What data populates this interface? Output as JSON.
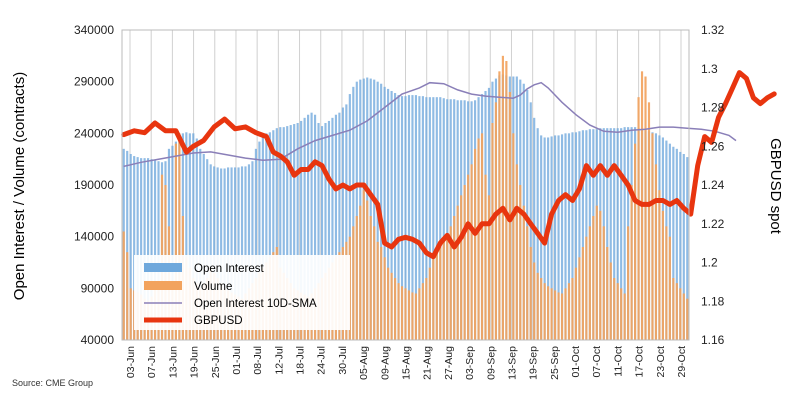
{
  "chart_data": {
    "type": "bar+line",
    "left_axis": {
      "label": "Open Interest / Volume (contracts)",
      "range": [
        40000,
        340000
      ],
      "ticks": [
        "40000",
        "90000",
        "140000",
        "190000",
        "240000",
        "290000",
        "340000"
      ]
    },
    "right_axis": {
      "label": "GBPUSD spot",
      "range": [
        1.16,
        1.32
      ],
      "ticks": [
        "1.16",
        "1.18",
        "1.2",
        "1.22",
        "1.24",
        "1.26",
        "1.28",
        "1.3",
        "1.32"
      ]
    },
    "x_tick_labels": [
      "03-Jun",
      "07-Jun",
      "13-Jun",
      "19-Jun",
      "25-Jun",
      "01-Jul",
      "08-Jul",
      "12-Jul",
      "18-Jul",
      "24-Jul",
      "30-Jul",
      "05-Aug",
      "09-Aug",
      "15-Aug",
      "21-Aug",
      "27-Aug",
      "03-Sep",
      "09-Sep",
      "13-Sep",
      "19-Sep",
      "25-Sep",
      "01-Oct",
      "07-Oct",
      "11-Oct",
      "17-Oct",
      "23-Oct",
      "29-Oct"
    ],
    "grid": "vertical lines at each x tick label",
    "legend": {
      "placement": "bottom-left",
      "entries": [
        {
          "name": "Open Interest",
          "color": "#6fa8dc"
        },
        {
          "name": "Volume",
          "color": "#f2a35e"
        },
        {
          "name": "Open Interest 10D-SMA",
          "color": "#8a7fb8"
        },
        {
          "name": "GBPUSD",
          "color": "#e8350f"
        }
      ]
    },
    "series": [
      {
        "name": "Open Interest",
        "type": "bar",
        "axis": "left",
        "values": [
          225000,
          223000,
          220000,
          218000,
          217000,
          216000,
          216000,
          216000,
          215000,
          214000,
          213000,
          212000,
          213000,
          225000,
          228000,
          232000,
          236000,
          240000,
          241000,
          240000,
          240000,
          235000,
          225000,
          220000,
          215000,
          210000,
          208000,
          207000,
          206000,
          206000,
          207000,
          207000,
          207000,
          207000,
          208000,
          208000,
          210000,
          213000,
          225000,
          232000,
          238000,
          240000,
          241000,
          243000,
          245000,
          246000,
          246000,
          247000,
          248000,
          249000,
          250000,
          252000,
          255000,
          258000,
          260000,
          258000,
          250000,
          247000,
          250000,
          252000,
          255000,
          258000,
          260000,
          265000,
          268000,
          278000,
          285000,
          290000,
          292000,
          293000,
          294000,
          293000,
          292000,
          290000,
          288000,
          285000,
          283000,
          281000,
          279000,
          277000,
          276000,
          276000,
          277000,
          277000,
          277000,
          276000,
          276000,
          275000,
          275000,
          275000,
          275000,
          275000,
          274000,
          273000,
          273000,
          273000,
          272000,
          272000,
          272000,
          271000,
          271000,
          272000,
          275000,
          278000,
          281000,
          284000,
          290000,
          293000,
          296000,
          297000,
          296000,
          295000,
          295000,
          295000,
          292000,
          288000,
          282000,
          270000,
          255000,
          245000,
          238000,
          236000,
          236000,
          237000,
          238000,
          238000,
          239000,
          240000,
          240000,
          241000,
          241000,
          242000,
          243000,
          243000,
          244000,
          244000,
          244000,
          245000,
          245000,
          245000,
          245000,
          245000,
          245000,
          245000,
          246000,
          246000,
          246000,
          246000,
          245000,
          244000,
          243000,
          242000,
          241000,
          240000,
          238000,
          236000,
          233000,
          230000,
          227000,
          225000,
          222000,
          220000,
          217000
        ],
        "color": "#6fa8dc"
      },
      {
        "name": "Volume",
        "type": "bar",
        "axis": "left",
        "values": [
          145000,
          125000,
          90000,
          88000,
          86000,
          84000,
          80000,
          78000,
          82000,
          90000,
          95000,
          200000,
          190000,
          150000,
          95000,
          230000,
          240000,
          160000,
          120000,
          110000,
          100000,
          95000,
          90000,
          95000,
          100000,
          110000,
          105000,
          100000,
          95000,
          90000,
          88000,
          86000,
          84000,
          82000,
          80000,
          85000,
          90000,
          95000,
          100000,
          105000,
          110000,
          115000,
          120000,
          125000,
          130000,
          110000,
          105000,
          100000,
          95000,
          90000,
          88000,
          86000,
          84000,
          82000,
          85000,
          90000,
          95000,
          100000,
          105000,
          110000,
          115000,
          120000,
          125000,
          130000,
          135000,
          140000,
          150000,
          160000,
          170000,
          185000,
          175000,
          160000,
          150000,
          135000,
          130000,
          120000,
          110000,
          105000,
          100000,
          95000,
          92000,
          90000,
          88000,
          86000,
          85000,
          90000,
          95000,
          100000,
          110000,
          120000,
          125000,
          130000,
          135000,
          140000,
          150000,
          160000,
          170000,
          180000,
          190000,
          200000,
          210000,
          225000,
          235000,
          240000,
          200000,
          180000,
          250000,
          270000,
          300000,
          315000,
          310000,
          280000,
          240000,
          210000,
          190000,
          170000,
          150000,
          130000,
          115000,
          105000,
          100000,
          95000,
          92000,
          90000,
          88000,
          86000,
          85000,
          90000,
          95000,
          100000,
          110000,
          120000,
          130000,
          140000,
          150000,
          160000,
          170000,
          165000,
          150000,
          130000,
          115000,
          100000,
          95000,
          90000,
          85000,
          150000,
          190000,
          230000,
          275000,
          300000,
          295000,
          270000,
          240000,
          210000,
          185000,
          165000,
          150000,
          140000,
          100000,
          95000,
          90000,
          85000,
          80000
        ],
        "color": "#f2a35e"
      },
      {
        "name": "Open Interest 10D-SMA",
        "type": "line",
        "axis": "left",
        "points": [
          [
            0,
            208000
          ],
          [
            5,
            212000
          ],
          [
            10,
            215000
          ],
          [
            15,
            218000
          ],
          [
            20,
            221000
          ],
          [
            25,
            222000
          ],
          [
            30,
            219000
          ],
          [
            35,
            216000
          ],
          [
            40,
            214000
          ],
          [
            45,
            215000
          ],
          [
            50,
            225000
          ],
          [
            55,
            233000
          ],
          [
            60,
            238000
          ],
          [
            65,
            243000
          ],
          [
            70,
            252000
          ],
          [
            75,
            265000
          ],
          [
            80,
            278000
          ],
          [
            85,
            284000
          ],
          [
            88,
            289000
          ],
          [
            92,
            288000
          ],
          [
            96,
            282000
          ],
          [
            100,
            278000
          ],
          [
            104,
            276000
          ],
          [
            108,
            275000
          ],
          [
            112,
            274000
          ],
          [
            114,
            277000
          ],
          [
            116,
            283000
          ],
          [
            118,
            287000
          ],
          [
            120,
            289000
          ],
          [
            122,
            284000
          ],
          [
            126,
            270000
          ],
          [
            130,
            258000
          ],
          [
            134,
            248000
          ],
          [
            138,
            242000
          ],
          [
            142,
            241000
          ],
          [
            146,
            243000
          ],
          [
            150,
            244000
          ],
          [
            154,
            246000
          ],
          [
            158,
            246000
          ],
          [
            162,
            245000
          ],
          [
            166,
            244000
          ],
          [
            170,
            242000
          ],
          [
            174,
            238000
          ],
          [
            176,
            233000
          ]
        ],
        "color": "#8a7fb8"
      },
      {
        "name": "GBPUSD",
        "type": "line",
        "axis": "right",
        "points": [
          [
            0,
            1.266
          ],
          [
            3,
            1.268
          ],
          [
            6,
            1.267
          ],
          [
            9,
            1.272
          ],
          [
            12,
            1.268
          ],
          [
            15,
            1.268
          ],
          [
            18,
            1.257
          ],
          [
            20,
            1.26
          ],
          [
            23,
            1.263
          ],
          [
            26,
            1.27
          ],
          [
            29,
            1.274
          ],
          [
            32,
            1.269
          ],
          [
            35,
            1.27
          ],
          [
            38,
            1.267
          ],
          [
            41,
            1.265
          ],
          [
            43,
            1.257
          ],
          [
            45,
            1.255
          ],
          [
            47,
            1.252
          ],
          [
            49,
            1.245
          ],
          [
            51,
            1.248
          ],
          [
            53,
            1.248
          ],
          [
            55,
            1.252
          ],
          [
            57,
            1.25
          ],
          [
            59,
            1.243
          ],
          [
            61,
            1.238
          ],
          [
            63,
            1.24
          ],
          [
            65,
            1.238
          ],
          [
            67,
            1.24
          ],
          [
            69,
            1.24
          ],
          [
            71,
            1.235
          ],
          [
            73,
            1.23
          ],
          [
            75,
            1.21
          ],
          [
            77,
            1.208
          ],
          [
            79,
            1.212
          ],
          [
            81,
            1.213
          ],
          [
            83,
            1.212
          ],
          [
            85,
            1.21
          ],
          [
            87,
            1.205
          ],
          [
            89,
            1.203
          ],
          [
            91,
            1.21
          ],
          [
            93,
            1.214
          ],
          [
            95,
            1.208
          ],
          [
            97,
            1.213
          ],
          [
            99,
            1.22
          ],
          [
            101,
            1.215
          ],
          [
            103,
            1.22
          ],
          [
            105,
            1.22
          ],
          [
            107,
            1.225
          ],
          [
            109,
            1.228
          ],
          [
            111,
            1.222
          ],
          [
            113,
            1.228
          ],
          [
            115,
            1.225
          ],
          [
            117,
            1.22
          ],
          [
            119,
            1.215
          ],
          [
            121,
            1.21
          ],
          [
            123,
            1.225
          ],
          [
            125,
            1.232
          ],
          [
            127,
            1.235
          ],
          [
            129,
            1.232
          ],
          [
            131,
            1.238
          ],
          [
            133,
            1.25
          ],
          [
            135,
            1.245
          ],
          [
            137,
            1.25
          ],
          [
            139,
            1.245
          ],
          [
            141,
            1.25
          ],
          [
            143,
            1.245
          ],
          [
            145,
            1.24
          ],
          [
            147,
            1.232
          ],
          [
            149,
            1.23
          ],
          [
            151,
            1.23
          ],
          [
            153,
            1.232
          ],
          [
            155,
            1.232
          ],
          [
            157,
            1.23
          ],
          [
            159,
            1.232
          ],
          [
            161,
            1.228
          ],
          [
            163,
            1.225
          ],
          [
            165,
            1.25
          ],
          [
            167,
            1.265
          ],
          [
            169,
            1.262
          ],
          [
            171,
            1.275
          ],
          [
            173,
            1.282
          ],
          [
            175,
            1.29
          ],
          [
            177,
            1.298
          ],
          [
            179,
            1.295
          ],
          [
            181,
            1.285
          ],
          [
            183,
            1.282
          ],
          [
            185,
            1.285
          ],
          [
            187,
            1.287
          ]
        ],
        "color": "#e8350f"
      }
    ]
  },
  "source_text": "Source: CME Group"
}
